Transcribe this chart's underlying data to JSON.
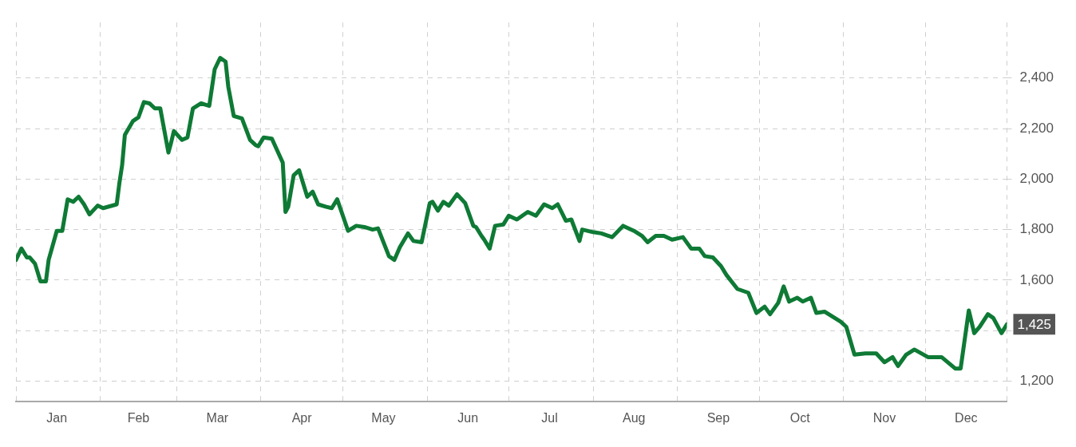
{
  "chart_data": {
    "type": "line",
    "x": [
      "--01-01",
      "--01-03",
      "--01-05",
      "--01-06",
      "--01-08",
      "--01-10",
      "--01-12",
      "--01-13",
      "--01-16",
      "--01-18",
      "--01-20",
      "--01-22",
      "--01-24",
      "--01-26",
      "--01-28",
      "--01-31",
      "--02-02",
      "--02-07",
      "--02-08",
      "--02-09",
      "--02-10",
      "--02-13",
      "--02-15",
      "--02-17",
      "--02-19",
      "--02-21",
      "--02-23",
      "--02-26",
      "--02-27",
      "--02-28",
      "--03-03",
      "--03-05",
      "--03-07",
      "--03-10",
      "--03-13",
      "--03-15",
      "--03-17",
      "--03-19",
      "--03-20",
      "--03-22",
      "--03-25",
      "--03-28",
      "--03-30",
      "--03-31",
      "--04-02",
      "--04-05",
      "--04-09",
      "--04-10",
      "--04-11",
      "--04-13",
      "--04-15",
      "--04-18",
      "--04-20",
      "--04-22",
      "--04-25",
      "--04-27",
      "--04-29",
      "--05-03",
      "--05-06",
      "--05-09",
      "--05-12",
      "--05-14",
      "--05-18",
      "--05-20",
      "--05-22",
      "--05-25",
      "--05-27",
      "--05-30",
      "--06-02",
      "--06-03",
      "--06-05",
      "--06-07",
      "--06-09",
      "--06-12",
      "--06-15",
      "--06-18",
      "--06-19",
      "--06-21",
      "--06-22",
      "--06-24",
      "--06-26",
      "--06-29",
      "--07-01",
      "--07-04",
      "--07-08",
      "--07-11",
      "--07-14",
      "--07-17",
      "--07-19",
      "--07-22",
      "--07-24",
      "--07-27",
      "--07-28",
      "--08-01",
      "--08-04",
      "--08-08",
      "--08-12",
      "--08-16",
      "--08-19",
      "--08-21",
      "--08-24",
      "--08-27",
      "--08-30",
      "--09-03",
      "--09-06",
      "--09-09",
      "--09-11",
      "--09-14",
      "--09-17",
      "--09-19",
      "--09-23",
      "--09-27",
      "--09-30",
      "--10-03",
      "--10-05",
      "--10-08",
      "--10-10",
      "--10-12",
      "--10-15",
      "--10-17",
      "--10-20",
      "--10-22",
      "--10-25",
      "--10-31",
      "--11-02",
      "--11-05",
      "--11-09",
      "--11-13",
      "--11-16",
      "--11-19",
      "--11-21",
      "--11-24",
      "--11-27",
      "--12-02",
      "--12-07",
      "--12-12",
      "--12-14",
      "--12-17",
      "--12-19",
      "--12-21",
      "--12-24",
      "--12-26",
      "--12-29",
      "--12-31"
    ],
    "series": [
      {
        "color": "#0e7a35",
        "values": [
          1680,
          1725,
          1690,
          1690,
          1665,
          1595,
          1595,
          1680,
          1795,
          1795,
          1920,
          1910,
          1930,
          1900,
          1860,
          1895,
          1885,
          1900,
          1985,
          2055,
          2175,
          2230,
          2245,
          2305,
          2300,
          2280,
          2280,
          2105,
          2145,
          2190,
          2155,
          2165,
          2280,
          2300,
          2290,
          2435,
          2480,
          2465,
          2365,
          2250,
          2240,
          2155,
          2135,
          2130,
          2165,
          2160,
          2065,
          1870,
          1890,
          2015,
          2035,
          1930,
          1950,
          1900,
          1890,
          1885,
          1920,
          1795,
          1815,
          1810,
          1800,
          1805,
          1695,
          1680,
          1730,
          1785,
          1755,
          1750,
          1905,
          1910,
          1875,
          1910,
          1895,
          1940,
          1905,
          1815,
          1810,
          1775,
          1760,
          1725,
          1815,
          1820,
          1855,
          1840,
          1870,
          1855,
          1900,
          1885,
          1900,
          1835,
          1840,
          1755,
          1800,
          1790,
          1785,
          1770,
          1815,
          1795,
          1775,
          1750,
          1775,
          1775,
          1760,
          1770,
          1725,
          1725,
          1695,
          1690,
          1655,
          1620,
          1565,
          1550,
          1470,
          1495,
          1465,
          1510,
          1575,
          1515,
          1530,
          1515,
          1530,
          1470,
          1475,
          1435,
          1415,
          1305,
          1310,
          1310,
          1275,
          1295,
          1260,
          1305,
          1325,
          1295,
          1295,
          1250,
          1250,
          1480,
          1390,
          1415,
          1465,
          1450,
          1390,
          1425
        ]
      }
    ],
    "xlim": [
      "--01-01",
      "--12-31"
    ],
    "xticks": [
      {
        "value": "--01-01",
        "label": null
      },
      {
        "value": "--01-16",
        "label": "Jan"
      },
      {
        "value": "--02-01",
        "label": null
      },
      {
        "value": "--02-15",
        "label": "Feb"
      },
      {
        "value": "--03-01",
        "label": null
      },
      {
        "value": "--03-16",
        "label": "Mar"
      },
      {
        "value": "--04-01",
        "label": null
      },
      {
        "value": "--04-16",
        "label": "Apr"
      },
      {
        "value": "--05-01",
        "label": null
      },
      {
        "value": "--05-16",
        "label": "May"
      },
      {
        "value": "--06-01",
        "label": null
      },
      {
        "value": "--06-16",
        "label": "Jun"
      },
      {
        "value": "--07-01",
        "label": null
      },
      {
        "value": "--07-16",
        "label": "Jul"
      },
      {
        "value": "--08-01",
        "label": null
      },
      {
        "value": "--08-16",
        "label": "Aug"
      },
      {
        "value": "--09-01",
        "label": null
      },
      {
        "value": "--09-16",
        "label": "Sep"
      },
      {
        "value": "--10-01",
        "label": null
      },
      {
        "value": "--10-16",
        "label": "Oct"
      },
      {
        "value": "--11-01",
        "label": null
      },
      {
        "value": "--11-16",
        "label": "Nov"
      },
      {
        "value": "--12-01",
        "label": null
      },
      {
        "value": "--12-16",
        "label": "Dec"
      },
      {
        "value": "--12-31",
        "label": null
      }
    ],
    "ylim": [
      1120,
      2620
    ],
    "yticks": [
      {
        "value": 1200,
        "label": "1,200"
      },
      {
        "value": 1400,
        "label": null
      },
      {
        "value": 1600,
        "label": "1,600"
      },
      {
        "value": 1800,
        "label": "1,800"
      },
      {
        "value": 2000,
        "label": "2,000"
      },
      {
        "value": 2200,
        "label": "2,200"
      },
      {
        "value": 2400,
        "label": "2,400"
      }
    ],
    "annotations": [
      {
        "text": "1,425",
        "x": "--12-31",
        "y": 1425
      }
    ],
    "grid": true,
    "legend": false,
    "marker": "none",
    "line_style": "solid"
  }
}
